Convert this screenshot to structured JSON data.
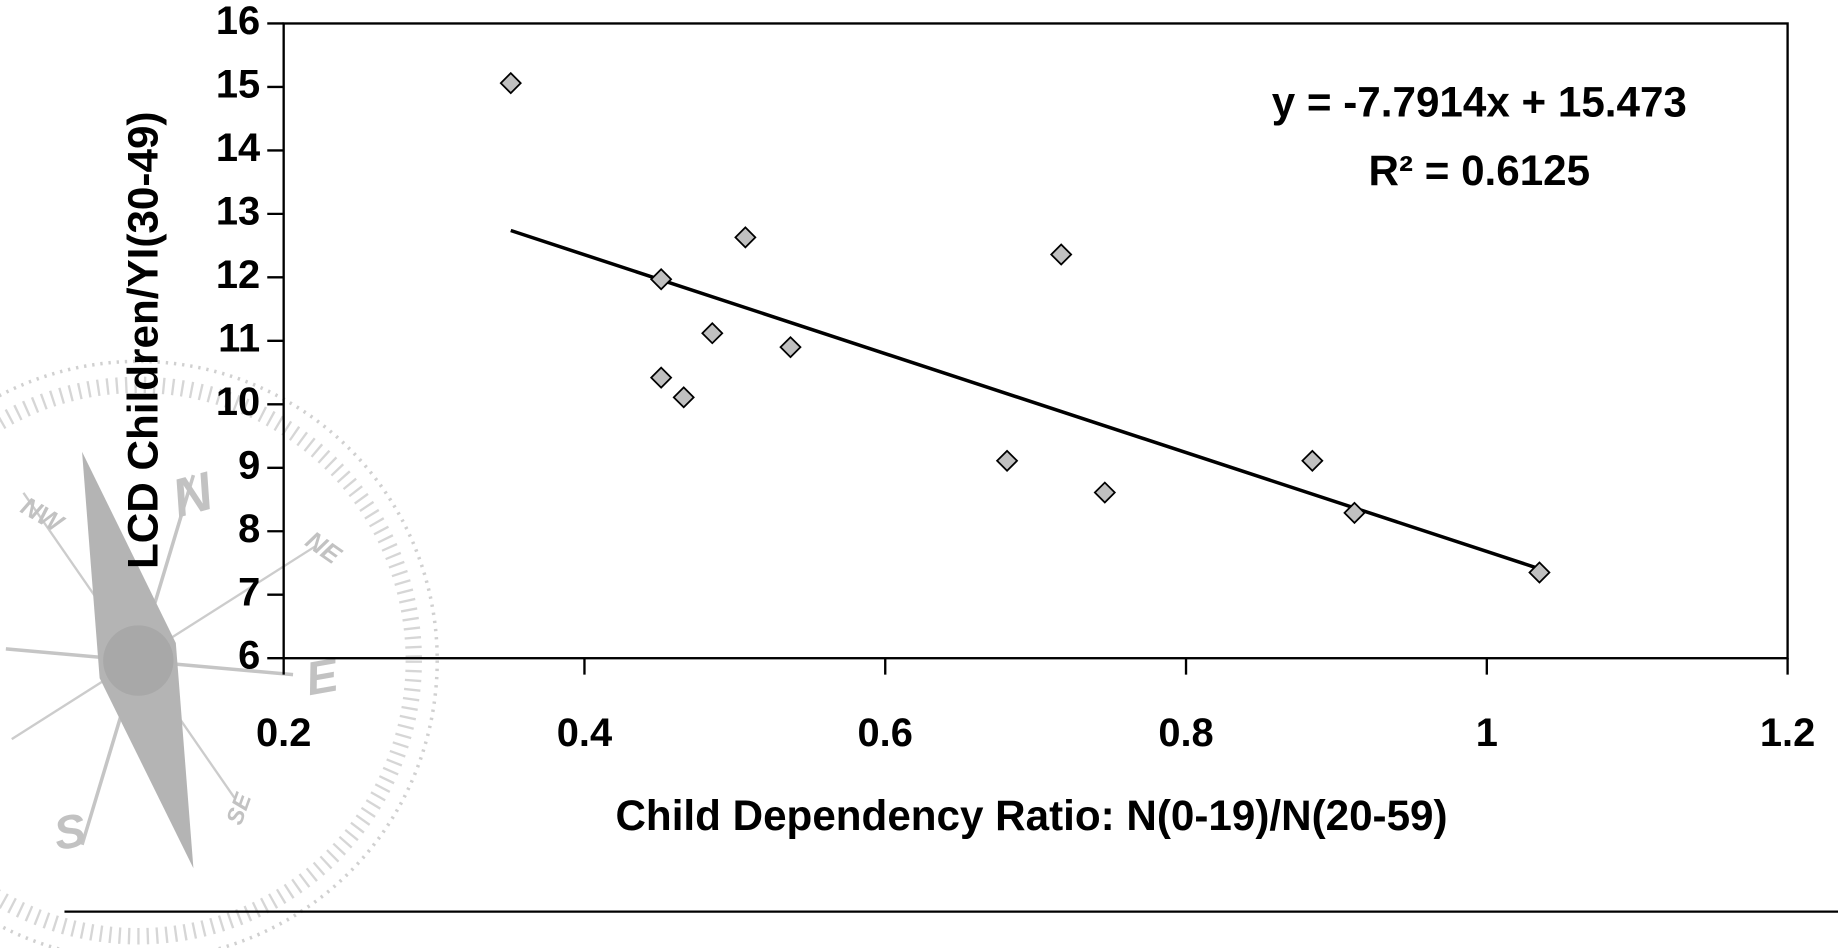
{
  "chart_data": {
    "type": "scatter",
    "x_label": "Child Dependency Ratio: N(0-19)/N(20-59)",
    "y_label": "LCD Children/YI(30-49)",
    "x": [
      0.351,
      0.451,
      0.507,
      0.485,
      0.537,
      0.451,
      0.466,
      0.681,
      0.717,
      0.746,
      0.884,
      0.912,
      1.035
    ],
    "values": [
      15.06,
      11.97,
      12.63,
      11.12,
      10.9,
      10.42,
      10.11,
      9.11,
      12.36,
      8.61,
      9.11,
      8.29,
      7.35
    ],
    "color": "#c0c0c0",
    "xlim": [
      0.2,
      1.2
    ],
    "xticks": [
      0.2,
      0.4,
      0.6,
      0.8,
      1,
      1.2
    ],
    "ylim": [
      6,
      16
    ],
    "yticks": [
      6,
      7,
      8,
      9,
      10,
      11,
      12,
      13,
      14,
      15,
      16
    ],
    "trendline": {
      "equation": "y = -7.7914x + 15.473",
      "slope": -7.7914,
      "intercept": 15.473,
      "r_squared": {
        "label": "R² = 0.6125",
        "value": 0.6125
      }
    },
    "watermark": [
      "N",
      "NW",
      "NE",
      "E",
      "S",
      "SE"
    ]
  }
}
